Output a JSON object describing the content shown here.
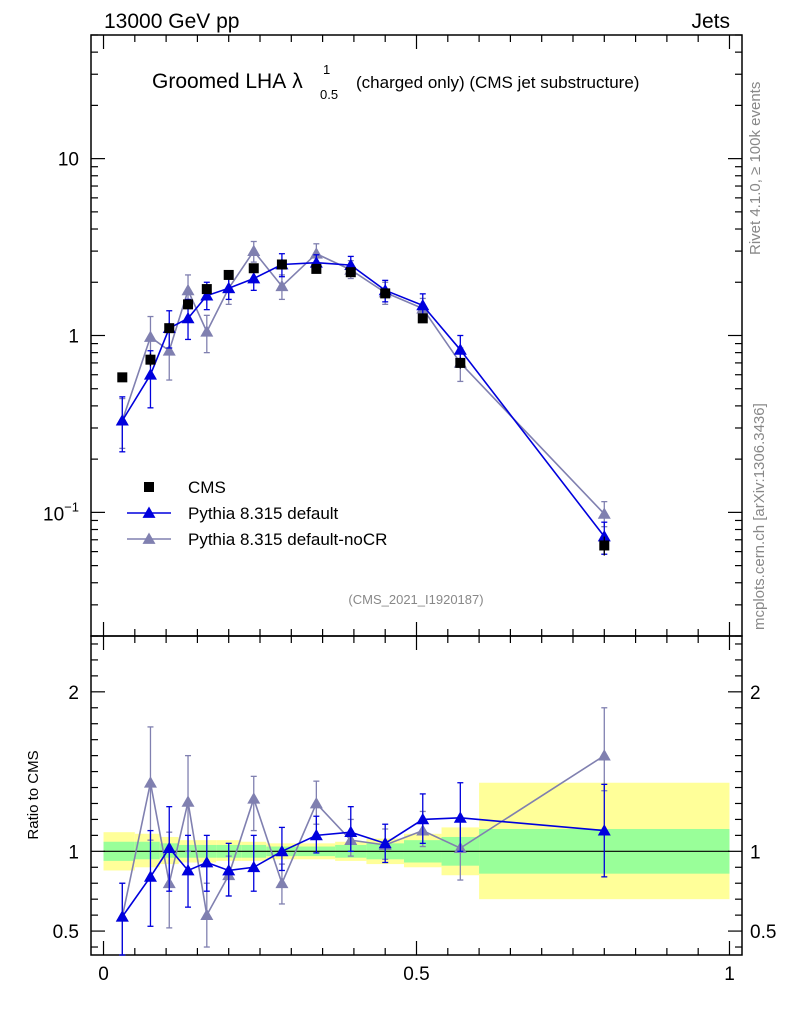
{
  "header": {
    "left": "13000 GeV pp",
    "right": "Jets"
  },
  "title": {
    "main": "Groomed LHA",
    "symbol": "λ",
    "sup": "1",
    "sub": "0.5",
    "detail": "(charged only) (CMS jet substructure)"
  },
  "side_labels": {
    "rivet": "Rivet 4.1.0, ≥ 100k events",
    "mcplots": "mcplots.cern.ch [arXiv:1306.3436]"
  },
  "analysis_id": "(CMS_2021_I1920187)",
  "colors": {
    "data": "#000000",
    "default": "#0000dd",
    "nocr": "#8080b0",
    "band_outer": "#ffff99",
    "band_inner": "#99ff99"
  },
  "chart_data": [
    {
      "type": "scatter",
      "name": "main",
      "yscale": "log",
      "xlim": [
        -0.02,
        1.02
      ],
      "ylim": [
        0.02,
        50
      ],
      "yticks": [
        {
          "value": 0.1,
          "base": "10",
          "exp": "−1"
        },
        {
          "value": 1,
          "label": "1"
        },
        {
          "value": 10,
          "label": "10"
        }
      ],
      "legend": {
        "position": "lower-left",
        "entries": [
          "CMS",
          "Pythia 8.315 default",
          "Pythia 8.315 default-noCR"
        ]
      },
      "series": [
        {
          "name": "CMS",
          "marker": "square",
          "x": [
            0.03,
            0.075,
            0.105,
            0.135,
            0.165,
            0.2,
            0.24,
            0.285,
            0.34,
            0.395,
            0.45,
            0.51,
            0.57,
            0.8
          ],
          "y": [
            0.58,
            0.73,
            1.1,
            1.5,
            1.83,
            2.2,
            2.4,
            2.52,
            2.38,
            2.28,
            1.73,
            1.25,
            0.7,
            0.065
          ],
          "yerr": [
            0.02,
            0.06,
            0.05,
            0.06,
            0.06,
            0.08,
            0.09,
            0.1,
            0.09,
            0.09,
            0.08,
            0.07,
            0.05,
            0.008
          ]
        },
        {
          "name": "Pythia 8.315 default",
          "marker": "triangle",
          "x": [
            0.03,
            0.075,
            0.105,
            0.135,
            0.165,
            0.2,
            0.24,
            0.285,
            0.34,
            0.395,
            0.45,
            0.51,
            0.57,
            0.8
          ],
          "y": [
            0.33,
            0.6,
            1.1,
            1.25,
            1.68,
            1.85,
            2.1,
            2.52,
            2.58,
            2.5,
            1.8,
            1.48,
            0.83,
            0.073
          ],
          "ylow": [
            0.22,
            0.39,
            0.85,
            0.95,
            1.4,
            1.6,
            1.8,
            2.15,
            2.3,
            2.2,
            1.55,
            1.28,
            0.67,
            0.058
          ],
          "yhigh": [
            0.45,
            0.82,
            1.38,
            1.6,
            2.0,
            2.15,
            2.45,
            2.9,
            2.86,
            2.8,
            2.05,
            1.72,
            1.0,
            0.088
          ]
        },
        {
          "name": "Pythia 8.315 default-noCR",
          "marker": "triangle",
          "x": [
            0.03,
            0.075,
            0.105,
            0.135,
            0.165,
            0.2,
            0.24,
            0.285,
            0.34,
            0.395,
            0.45,
            0.51,
            0.57,
            0.8
          ],
          "y": [
            0.33,
            0.98,
            0.82,
            1.8,
            1.05,
            1.85,
            3.0,
            1.9,
            2.9,
            2.35,
            1.75,
            1.42,
            0.7,
            0.098
          ],
          "ylow": [
            0.23,
            0.72,
            0.56,
            1.42,
            0.8,
            1.5,
            2.6,
            1.6,
            2.55,
            2.1,
            1.5,
            1.22,
            0.55,
            0.083
          ],
          "yhigh": [
            0.44,
            1.28,
            1.1,
            2.2,
            1.3,
            2.2,
            3.4,
            2.2,
            3.3,
            2.65,
            2.0,
            1.62,
            0.85,
            0.115
          ]
        }
      ]
    },
    {
      "type": "scatter",
      "name": "ratio",
      "ylabel": "Ratio to CMS",
      "xlim": [
        -0.02,
        1.02
      ],
      "ylim": [
        0.35,
        2.35
      ],
      "yticks": [
        {
          "value": 0.5,
          "label": "0.5"
        },
        {
          "value": 1,
          "label": "1"
        },
        {
          "value": 2,
          "label": "2"
        }
      ],
      "xticks": [
        {
          "value": 0,
          "label": "0"
        },
        {
          "value": 0.5,
          "label": "0.5"
        },
        {
          "value": 1,
          "label": "1"
        }
      ],
      "bands": {
        "edges": [
          0.0,
          0.05,
          0.09,
          0.12,
          0.15,
          0.18,
          0.22,
          0.26,
          0.31,
          0.37,
          0.42,
          0.48,
          0.54,
          0.6,
          1.0
        ],
        "inner_low": [
          0.94,
          0.95,
          0.96,
          0.96,
          0.96,
          0.96,
          0.96,
          0.97,
          0.97,
          0.96,
          0.95,
          0.93,
          0.91,
          0.86
        ],
        "inner_high": [
          1.06,
          1.06,
          1.05,
          1.04,
          1.04,
          1.04,
          1.04,
          1.03,
          1.03,
          1.04,
          1.05,
          1.07,
          1.09,
          1.14
        ],
        "outer_low": [
          0.88,
          0.9,
          0.92,
          0.93,
          0.93,
          0.94,
          0.94,
          0.95,
          0.95,
          0.94,
          0.92,
          0.9,
          0.85,
          0.7
        ],
        "outer_high": [
          1.12,
          1.11,
          1.09,
          1.07,
          1.07,
          1.07,
          1.06,
          1.05,
          1.05,
          1.06,
          1.08,
          1.11,
          1.15,
          1.43
        ]
      },
      "series": [
        {
          "name": "Pythia 8.315 default",
          "x": [
            0.03,
            0.075,
            0.105,
            0.135,
            0.165,
            0.2,
            0.24,
            0.285,
            0.34,
            0.395,
            0.45,
            0.51,
            0.57,
            0.8
          ],
          "y": [
            0.59,
            0.84,
            1.02,
            0.88,
            0.93,
            0.88,
            0.9,
            1.0,
            1.1,
            1.12,
            1.05,
            1.2,
            1.21,
            1.13
          ],
          "ylow": [
            0.33,
            0.53,
            0.75,
            0.65,
            0.75,
            0.72,
            0.75,
            0.88,
            0.99,
            1.0,
            0.93,
            1.05,
            1.0,
            0.84
          ],
          "yhigh": [
            0.8,
            1.13,
            1.28,
            1.1,
            1.1,
            1.05,
            1.1,
            1.15,
            1.22,
            1.28,
            1.17,
            1.36,
            1.43,
            1.42
          ]
        },
        {
          "name": "Pythia 8.315 default-noCR",
          "x": [
            0.03,
            0.075,
            0.105,
            0.135,
            0.165,
            0.2,
            0.24,
            0.285,
            0.34,
            0.395,
            0.45,
            0.51,
            0.57,
            0.8
          ],
          "y": [
            0.59,
            1.43,
            0.8,
            1.31,
            0.6,
            0.85,
            1.33,
            0.8,
            1.3,
            1.07,
            1.04,
            1.13,
            1.02,
            1.6
          ],
          "ylow": [
            0.28,
            1.07,
            0.52,
            1.0,
            0.4,
            0.72,
            1.13,
            0.67,
            1.17,
            0.97,
            0.95,
            1.03,
            0.82,
            1.38
          ],
          "yhigh": [
            0.8,
            1.78,
            1.12,
            1.6,
            0.8,
            0.97,
            1.47,
            0.92,
            1.44,
            1.2,
            1.14,
            1.25,
            1.2,
            1.9
          ]
        }
      ]
    }
  ]
}
